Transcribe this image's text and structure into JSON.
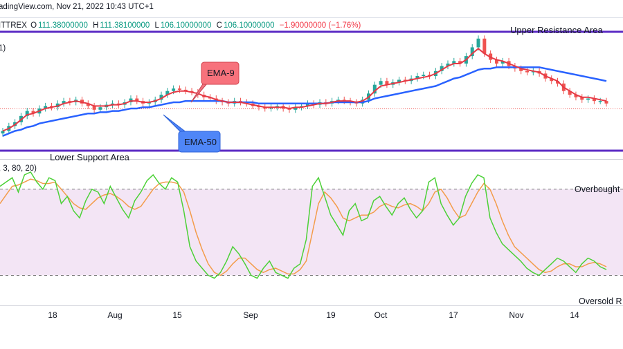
{
  "header": {
    "source": "adingView.com, Nov 21, 2022 10:43 UTC+1",
    "symbol": "ITTREX",
    "ohlc": {
      "open_label": "O",
      "open": "111.38000000",
      "high_label": "H",
      "high": "111.38100000",
      "low_label": "L",
      "low": "106.10000000",
      "close_label": "C",
      "close": "106.10000000",
      "change": "−1.90000000 (−1.76%)"
    },
    "ema_fragment": "1)",
    "stoch_fragment": ", 3, 80, 20)"
  },
  "colors": {
    "up": "#26a69a",
    "down": "#ef5350",
    "ema9": "#e53945",
    "ema50": "#2962ff",
    "levels": "#5b2bc4",
    "stoch_k": "#4cd137",
    "stoch_d": "#f39c4a",
    "band_fill": "#f3e5f5",
    "close_line": "#ef5350"
  },
  "chart_data": [
    {
      "type": "candlestick",
      "x_ticks": [
        "18",
        "Aug",
        "15",
        "Sep",
        "19",
        "Oct",
        "17",
        "Nov",
        "14"
      ],
      "annotations": {
        "upper_level": "Upper Resistance Area",
        "lower_level": "Lower Support Area",
        "ema_fast_callout": "EMA-9",
        "ema_slow_callout": "EMA-50"
      },
      "upper_level_value": 0.94,
      "lower_level_value": 0.06,
      "last_close_value": 0.4,
      "close_series": [
        0.18,
        0.22,
        0.25,
        0.3,
        0.34,
        0.32,
        0.36,
        0.38,
        0.37,
        0.4,
        0.42,
        0.41,
        0.43,
        0.4,
        0.38,
        0.35,
        0.37,
        0.39,
        0.4,
        0.39,
        0.41,
        0.44,
        0.42,
        0.4,
        0.41,
        0.43,
        0.47,
        0.5,
        0.52,
        0.51,
        0.5,
        0.49,
        0.47,
        0.45,
        0.44,
        0.42,
        0.41,
        0.4,
        0.42,
        0.41,
        0.4,
        0.38,
        0.37,
        0.36,
        0.37,
        0.38,
        0.36,
        0.35,
        0.37,
        0.38,
        0.4,
        0.39,
        0.41,
        0.4,
        0.42,
        0.43,
        0.42,
        0.41,
        0.4,
        0.43,
        0.48,
        0.55,
        0.58,
        0.55,
        0.57,
        0.59,
        0.58,
        0.6,
        0.62,
        0.63,
        0.62,
        0.66,
        0.7,
        0.72,
        0.74,
        0.72,
        0.78,
        0.85,
        0.92,
        0.8,
        0.75,
        0.72,
        0.74,
        0.7,
        0.68,
        0.66,
        0.65,
        0.66,
        0.64,
        0.6,
        0.58,
        0.56,
        0.5,
        0.47,
        0.45,
        0.43,
        0.44,
        0.42,
        0.42,
        0.4
      ],
      "ema9_series": [
        0.18,
        0.2,
        0.23,
        0.27,
        0.31,
        0.32,
        0.34,
        0.36,
        0.37,
        0.38,
        0.4,
        0.41,
        0.42,
        0.41,
        0.4,
        0.38,
        0.38,
        0.38,
        0.39,
        0.39,
        0.4,
        0.42,
        0.42,
        0.41,
        0.41,
        0.42,
        0.44,
        0.47,
        0.49,
        0.5,
        0.5,
        0.49,
        0.48,
        0.46,
        0.45,
        0.43,
        0.42,
        0.41,
        0.41,
        0.41,
        0.4,
        0.39,
        0.38,
        0.37,
        0.37,
        0.37,
        0.37,
        0.36,
        0.37,
        0.37,
        0.38,
        0.39,
        0.4,
        0.4,
        0.41,
        0.42,
        0.42,
        0.42,
        0.41,
        0.42,
        0.45,
        0.5,
        0.54,
        0.55,
        0.56,
        0.57,
        0.58,
        0.59,
        0.6,
        0.61,
        0.62,
        0.64,
        0.67,
        0.7,
        0.72,
        0.72,
        0.75,
        0.8,
        0.84,
        0.8,
        0.77,
        0.75,
        0.74,
        0.72,
        0.7,
        0.68,
        0.67,
        0.66,
        0.65,
        0.62,
        0.6,
        0.58,
        0.53,
        0.5,
        0.47,
        0.45,
        0.45,
        0.44,
        0.43,
        0.42
      ],
      "ema50_series": [
        0.14,
        0.16,
        0.18,
        0.19,
        0.21,
        0.22,
        0.24,
        0.25,
        0.26,
        0.27,
        0.28,
        0.29,
        0.3,
        0.31,
        0.32,
        0.32,
        0.33,
        0.33,
        0.34,
        0.34,
        0.35,
        0.36,
        0.36,
        0.37,
        0.37,
        0.38,
        0.39,
        0.4,
        0.41,
        0.41,
        0.42,
        0.42,
        0.42,
        0.42,
        0.42,
        0.42,
        0.42,
        0.41,
        0.41,
        0.41,
        0.41,
        0.41,
        0.4,
        0.4,
        0.4,
        0.4,
        0.4,
        0.4,
        0.4,
        0.4,
        0.4,
        0.4,
        0.4,
        0.4,
        0.41,
        0.41,
        0.41,
        0.41,
        0.41,
        0.41,
        0.42,
        0.44,
        0.45,
        0.46,
        0.47,
        0.48,
        0.49,
        0.5,
        0.51,
        0.52,
        0.53,
        0.54,
        0.56,
        0.58,
        0.6,
        0.61,
        0.63,
        0.65,
        0.67,
        0.68,
        0.68,
        0.69,
        0.69,
        0.69,
        0.69,
        0.69,
        0.69,
        0.69,
        0.69,
        0.68,
        0.67,
        0.66,
        0.65,
        0.64,
        0.63,
        0.62,
        0.61,
        0.6,
        0.59,
        0.58
      ]
    },
    {
      "type": "line",
      "annotations": {
        "overbought": "Overbought",
        "oversold": "Oversold R"
      },
      "overbought_level": 80,
      "oversold_level": 20,
      "k_series": [
        82,
        85,
        88,
        78,
        90,
        92,
        85,
        80,
        88,
        86,
        70,
        75,
        65,
        60,
        72,
        80,
        78,
        70,
        82,
        74,
        66,
        60,
        72,
        78,
        86,
        90,
        84,
        80,
        88,
        85,
        65,
        40,
        30,
        25,
        20,
        18,
        22,
        30,
        40,
        35,
        28,
        20,
        18,
        25,
        30,
        22,
        20,
        18,
        25,
        28,
        45,
        82,
        88,
        75,
        62,
        55,
        48,
        65,
        70,
        58,
        60,
        72,
        75,
        68,
        62,
        70,
        74,
        66,
        60,
        65,
        85,
        88,
        70,
        62,
        55,
        60,
        75,
        84,
        90,
        88,
        60,
        50,
        42,
        38,
        34,
        30,
        25,
        22,
        20,
        24,
        28,
        32,
        30,
        26,
        22,
        28,
        32,
        30,
        26,
        24
      ],
      "d_series": [
        70,
        76,
        82,
        83,
        85,
        87,
        86,
        84,
        84,
        85,
        80,
        75,
        70,
        67,
        66,
        70,
        74,
        76,
        77,
        75,
        72,
        68,
        66,
        68,
        74,
        80,
        84,
        85,
        85,
        84,
        78,
        65,
        50,
        38,
        28,
        22,
        20,
        23,
        28,
        32,
        32,
        28,
        24,
        22,
        24,
        25,
        23,
        21,
        21,
        24,
        30,
        50,
        70,
        78,
        74,
        68,
        60,
        58,
        60,
        62,
        62,
        64,
        68,
        70,
        68,
        67,
        69,
        70,
        68,
        65,
        70,
        78,
        80,
        74,
        66,
        60,
        62,
        70,
        78,
        84,
        80,
        70,
        58,
        48,
        40,
        36,
        32,
        28,
        24,
        22,
        23,
        26,
        28,
        28,
        26,
        26,
        28,
        29,
        28,
        26
      ]
    }
  ]
}
